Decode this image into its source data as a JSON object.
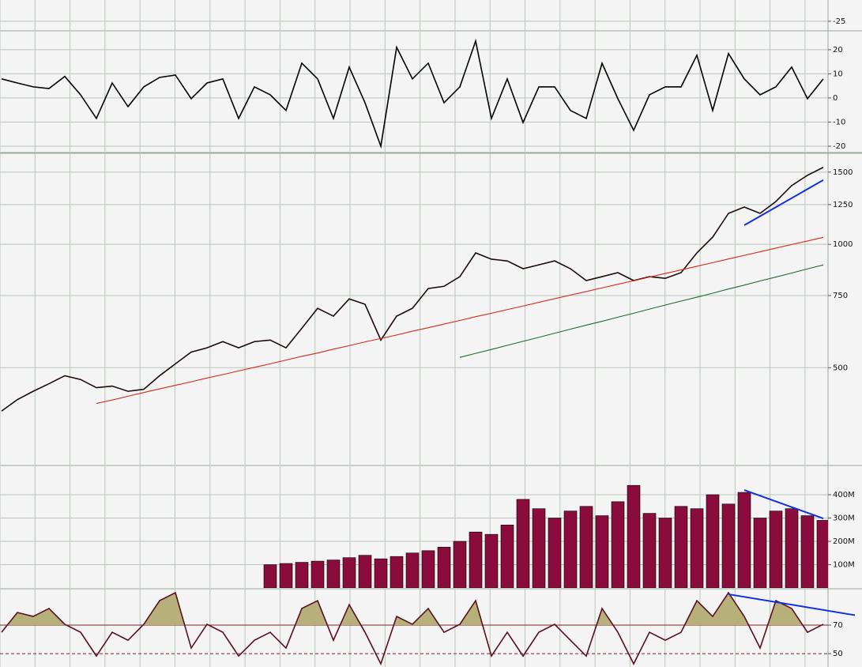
{
  "chart_data": [
    {
      "type": "line",
      "ylim": [
        -28.7,
        -16
      ],
      "yticks": [
        -25
      ],
      "grid": true,
      "series": []
    },
    {
      "type": "line",
      "ylim": [
        -22.3,
        27.5
      ],
      "yticks": [
        20,
        10,
        0,
        -10,
        -20
      ],
      "grid": true,
      "series": [
        {
          "color": "#000000",
          "values": [
            7.9,
            6.2,
            4.6,
            3.9,
            8.9,
            1.3,
            -8.5,
            6.2,
            -3.6,
            4.6,
            8.5,
            9.5,
            -0.3,
            6.2,
            7.9,
            -8.5,
            4.6,
            1.3,
            -5.2,
            14.4,
            7.9,
            -8.5,
            12.8,
            -2.0,
            -20.0,
            21.0,
            7.9,
            14.4,
            -2.0,
            4.6,
            23.6,
            -8.5,
            7.9,
            -10.2,
            4.6,
            4.6,
            -5.2,
            -8.5,
            14.4,
            -0.3,
            -13.4,
            1.3,
            4.6,
            4.6,
            17.7,
            -5.2,
            18.4,
            7.9,
            1.3,
            4.6,
            12.8,
            -0.3,
            7.9
          ]
        }
      ]
    },
    {
      "type": "line",
      "log": true,
      "ylim": [
        290,
        1660
      ],
      "yticks": [
        1500,
        1250,
        1000,
        750,
        500
      ],
      "grid": true,
      "series": [
        {
          "color": "#1a0a0a",
          "values": [
            392,
            418,
            438,
            457,
            478,
            468,
            447,
            451,
            438,
            443,
            478,
            511,
            546,
            559,
            579,
            559,
            579,
            584,
            559,
            624,
            698,
            668,
            736,
            714,
            584,
            668,
            698,
            780,
            790,
            834,
            953,
            920,
            911,
            872,
            891,
            911,
            872,
            816,
            834,
            853,
            816,
            834,
            826,
            853,
            953,
            1041,
            1190,
            1233,
            1190,
            1272,
            1391,
            1474,
            1541
          ]
        },
        {
          "color": "#d42a1a",
          "values": [
            null,
            null,
            null,
            null,
            null,
            null,
            409,
            417,
            426,
            435,
            444,
            453,
            462,
            472,
            481,
            491,
            501,
            511,
            522,
            533,
            543,
            555,
            566,
            578,
            589,
            601,
            614,
            626,
            639,
            652,
            666,
            679,
            693,
            707,
            722,
            737,
            752,
            767,
            783,
            799,
            815,
            832,
            849,
            866,
            884,
            902,
            921,
            940,
            959,
            979,
            999,
            1019,
            1040
          ]
        },
        {
          "color": "#1f6b2e",
          "values": [
            null,
            null,
            null,
            null,
            null,
            null,
            null,
            null,
            null,
            null,
            null,
            null,
            null,
            null,
            null,
            null,
            null,
            null,
            null,
            null,
            null,
            null,
            null,
            null,
            null,
            null,
            null,
            null,
            null,
            530,
            542,
            554,
            567,
            580,
            593,
            607,
            621,
            635,
            649,
            664,
            679,
            695,
            711,
            727,
            743,
            760,
            778,
            795,
            814,
            832,
            851,
            871,
            891
          ]
        }
      ],
      "trendlines": [
        {
          "color": "#1030e0",
          "x": [
            47,
            52
          ],
          "values": [
            1113,
            1435
          ]
        }
      ]
    },
    {
      "type": "bar",
      "ylim": [
        0,
        522000000
      ],
      "yticks": [
        {
          "value": 400000000,
          "label": "400M"
        },
        {
          "value": 300000000,
          "label": "300M"
        },
        {
          "value": 200000000,
          "label": "200M"
        },
        {
          "value": 100000000,
          "label": "100M"
        }
      ],
      "grid": true,
      "color": "#8a0c3c",
      "values": [
        null,
        null,
        null,
        null,
        null,
        null,
        null,
        null,
        null,
        null,
        null,
        null,
        null,
        null,
        null,
        null,
        null,
        100000000,
        105000000,
        110000000,
        115000000,
        120000000,
        130000000,
        140000000,
        125000000,
        135000000,
        150000000,
        160000000,
        175000000,
        200000000,
        240000000,
        230000000,
        270000000,
        380000000,
        340000000,
        300000000,
        330000000,
        350000000,
        310000000,
        370000000,
        440000000,
        320000000,
        300000000,
        350000000,
        340000000,
        400000000,
        360000000,
        410000000,
        300000000,
        330000000,
        340000000,
        310000000,
        290000000
      ],
      "trendlines": [
        {
          "color": "#1030e0",
          "x": [
            47,
            52
          ],
          "values": [
            420000000,
            298000000
          ]
        }
      ]
    },
    {
      "type": "line",
      "ylim": [
        40.6,
        95
      ],
      "yticks": [
        70,
        50
      ],
      "grid": true,
      "grid_color": "#7a1f2a",
      "fill_above": 70,
      "fill_color": "#b8b07a",
      "series": [
        {
          "color": "#5a0f1f",
          "values": [
            65.0,
            78.9,
            76.1,
            81.7,
            70.6,
            65.0,
            48.3,
            65.0,
            59.4,
            70.6,
            87.2,
            92.8,
            53.9,
            70.6,
            65.0,
            48.3,
            59.4,
            65.0,
            53.9,
            81.7,
            87.2,
            59.4,
            84.4,
            65.0,
            42.8,
            76.1,
            70.6,
            81.7,
            65.0,
            70.6,
            87.2,
            48.3,
            65.0,
            48.3,
            65.0,
            70.6,
            59.4,
            48.3,
            81.7,
            65.0,
            42.8,
            65.0,
            59.4,
            65.0,
            87.2,
            76.1,
            92.8,
            76.1,
            53.9,
            87.2,
            81.7,
            65.0,
            70.6
          ]
        }
      ],
      "trendlines": [
        {
          "color": "#1030e0",
          "x": [
            46,
            54
          ],
          "values": [
            91.7,
            77
          ]
        }
      ]
    }
  ]
}
